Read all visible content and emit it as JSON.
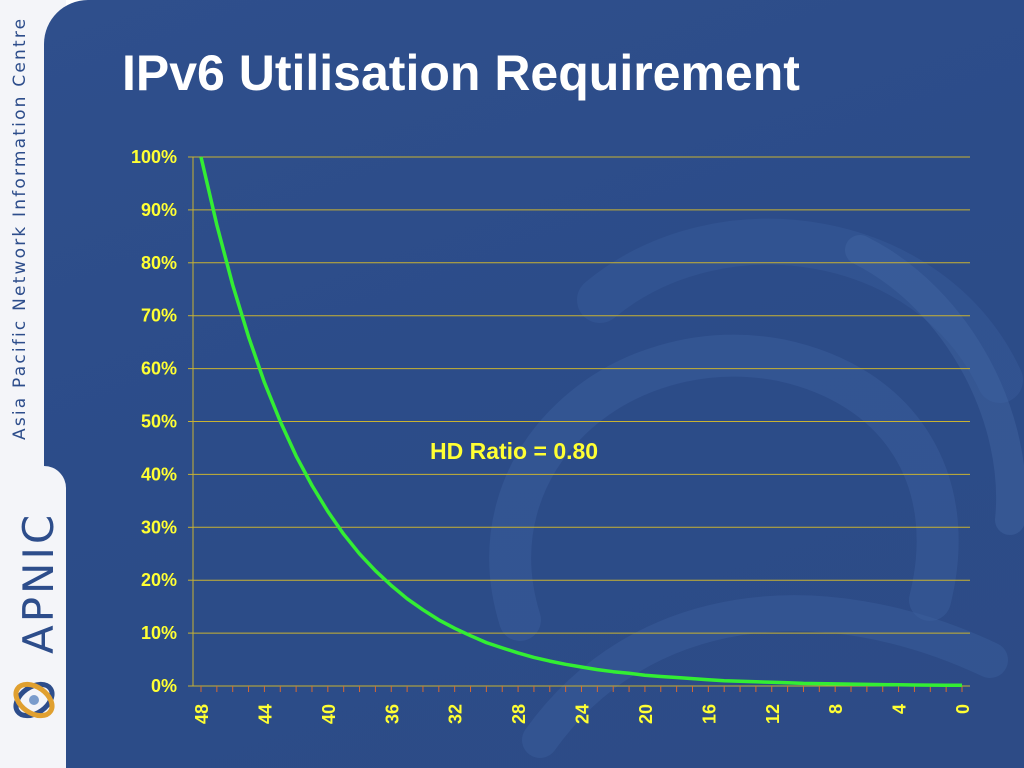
{
  "sidebar": {
    "org_name": "Asia Pacific Network Information Centre",
    "brand": "APNIC"
  },
  "colors": {
    "panel": "#2f4f8c",
    "sidebar": "#f4f5f9",
    "text_yellow": "#ffff33",
    "curve": "#33ee33",
    "grid": "#c8b232",
    "title": "#ffffff",
    "brand": "#2d4d8b"
  },
  "slide": {
    "title": "IPv6 Utilisation Requirement"
  },
  "chart_data": {
    "type": "line",
    "title": "",
    "xlabel": "",
    "ylabel": "",
    "x_reversed": true,
    "xlim": [
      48,
      0
    ],
    "ylim": [
      0,
      100
    ],
    "yticks": [
      "0%",
      "10%",
      "20%",
      "30%",
      "40%",
      "50%",
      "60%",
      "70%",
      "80%",
      "90%",
      "100%"
    ],
    "xtick_labels": [
      "48",
      "44",
      "40",
      "36",
      "32",
      "28",
      "24",
      "20",
      "16",
      "12",
      "8",
      "4",
      "0"
    ],
    "xtick_values": [
      48,
      44,
      40,
      36,
      32,
      28,
      24,
      20,
      16,
      12,
      8,
      4,
      0
    ],
    "grid": "horizontal",
    "annotation": "HD Ratio = 0.80",
    "series": [
      {
        "x": [
          48,
          47,
          46,
          45,
          44,
          43,
          42,
          41,
          40,
          39,
          38,
          37,
          36,
          35,
          34,
          33,
          32,
          31,
          30,
          29,
          28,
          27,
          26,
          25,
          24,
          23,
          22,
          21,
          20,
          19,
          18,
          17,
          16,
          15,
          14,
          13,
          12,
          11,
          10,
          9,
          8,
          7,
          6,
          5,
          4,
          3,
          2,
          1,
          0
        ],
        "y": [
          100,
          87.1,
          75.8,
          66.0,
          57.4,
          50.0,
          43.5,
          37.9,
          33.0,
          28.7,
          25.0,
          21.8,
          19.0,
          16.5,
          14.4,
          12.5,
          10.9,
          9.5,
          8.2,
          7.2,
          6.25,
          5.4,
          4.7,
          4.1,
          3.6,
          3.1,
          2.7,
          2.4,
          2.05,
          1.8,
          1.6,
          1.4,
          1.2,
          1.0,
          0.9,
          0.8,
          0.7,
          0.6,
          0.5,
          0.45,
          0.4,
          0.35,
          0.3,
          0.26,
          0.22,
          0.19,
          0.17,
          0.15,
          0.13
        ]
      }
    ]
  }
}
